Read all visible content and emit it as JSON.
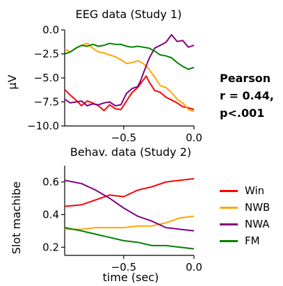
{
  "chart_data": [
    {
      "type": "line",
      "title": "EEG data (Study 1)",
      "xlabel": "",
      "ylabel": "μV",
      "xlim": [
        -0.92,
        0.0
      ],
      "ylim": [
        -10.0,
        0.0
      ],
      "xticks": [
        -0.5,
        0.0
      ],
      "xtick_labels": [
        "−0.5",
        "0.0"
      ],
      "yticks": [
        0.0,
        -2.5,
        -5.0,
        -7.5,
        -10.0
      ],
      "ytick_labels": [
        "0.0",
        "−2.5",
        "−5.0",
        "−7.5",
        "−10.0"
      ],
      "grid": false,
      "series": [
        {
          "color": "#ff0000",
          "x": [
            -0.92,
            -0.88,
            -0.84,
            -0.8,
            -0.76,
            -0.72,
            -0.68,
            -0.64,
            -0.6,
            -0.56,
            -0.52,
            -0.48,
            -0.44,
            -0.4,
            -0.36,
            -0.34,
            -0.32,
            -0.28,
            -0.24,
            -0.2,
            -0.16,
            -0.12,
            -0.08,
            -0.04,
            0.0
          ],
          "y": [
            -6.2,
            -6.8,
            -7.3,
            -7.9,
            -7.4,
            -7.6,
            -7.9,
            -8.4,
            -7.8,
            -8.2,
            -8.3,
            -7.4,
            -6.5,
            -6.0,
            -5.2,
            -4.8,
            -5.4,
            -6.3,
            -6.5,
            -7.0,
            -7.3,
            -7.6,
            -8.0,
            -8.1,
            -8.3
          ]
        },
        {
          "color": "#ffa500",
          "x": [
            -0.92,
            -0.88,
            -0.84,
            -0.8,
            -0.76,
            -0.72,
            -0.68,
            -0.64,
            -0.6,
            -0.56,
            -0.52,
            -0.48,
            -0.44,
            -0.4,
            -0.36,
            -0.32,
            -0.28,
            -0.24,
            -0.2,
            -0.16,
            -0.12,
            -0.08,
            -0.04,
            0.0
          ],
          "y": [
            -2.0,
            -2.3,
            -1.9,
            -1.6,
            -1.4,
            -1.9,
            -2.3,
            -2.4,
            -2.6,
            -2.8,
            -3.1,
            -3.5,
            -3.4,
            -3.2,
            -3.5,
            -4.1,
            -4.9,
            -5.8,
            -6.0,
            -6.5,
            -7.2,
            -7.6,
            -8.3,
            -8.5
          ]
        },
        {
          "color": "#800080",
          "x": [
            -0.92,
            -0.88,
            -0.84,
            -0.8,
            -0.76,
            -0.72,
            -0.68,
            -0.64,
            -0.6,
            -0.56,
            -0.52,
            -0.48,
            -0.44,
            -0.4,
            -0.38,
            -0.36,
            -0.32,
            -0.28,
            -0.24,
            -0.2,
            -0.16,
            -0.12,
            -0.08,
            -0.04,
            0.0
          ],
          "y": [
            -7.2,
            -7.6,
            -7.5,
            -7.4,
            -7.9,
            -7.7,
            -7.8,
            -7.6,
            -7.5,
            -7.9,
            -7.8,
            -6.6,
            -6.1,
            -5.9,
            -5.3,
            -4.5,
            -3.0,
            -1.9,
            -1.6,
            -1.3,
            -0.5,
            -1.2,
            -1.1,
            -1.8,
            -1.6
          ]
        },
        {
          "color": "#008000",
          "x": [
            -0.92,
            -0.88,
            -0.84,
            -0.8,
            -0.76,
            -0.72,
            -0.68,
            -0.64,
            -0.6,
            -0.56,
            -0.52,
            -0.48,
            -0.44,
            -0.4,
            -0.36,
            -0.32,
            -0.28,
            -0.24,
            -0.2,
            -0.16,
            -0.12,
            -0.08,
            -0.04,
            0.0
          ],
          "y": [
            -2.5,
            -2.3,
            -1.9,
            -1.6,
            -1.7,
            -1.5,
            -1.7,
            -1.6,
            -1.4,
            -1.5,
            -1.5,
            -1.7,
            -1.8,
            -1.7,
            -1.8,
            -1.9,
            -2.2,
            -2.6,
            -2.7,
            -2.9,
            -3.4,
            -3.8,
            -4.1,
            -3.9
          ]
        }
      ]
    },
    {
      "type": "line",
      "title": "Behav. data (Study 2)",
      "xlabel": "time (sec)",
      "ylabel": "Slot machibe",
      "xlim": [
        -0.92,
        0.0
      ],
      "ylim": [
        0.15,
        0.7
      ],
      "xticks": [
        -0.5,
        0.0
      ],
      "xtick_labels": [
        "−0.5",
        "0.0"
      ],
      "yticks": [
        0.2,
        0.4,
        0.6
      ],
      "ytick_labels": [
        "0.2",
        "0.4",
        "0.6"
      ],
      "grid": false,
      "series": [
        {
          "name": "Win",
          "color": "#ff0000",
          "x": [
            -0.92,
            -0.8,
            -0.7,
            -0.6,
            -0.5,
            -0.4,
            -0.3,
            -0.2,
            -0.1,
            0.0
          ],
          "y": [
            0.45,
            0.46,
            0.49,
            0.52,
            0.51,
            0.55,
            0.57,
            0.6,
            0.61,
            0.62
          ]
        },
        {
          "name": "NWB",
          "color": "#ffa500",
          "x": [
            -0.92,
            -0.8,
            -0.7,
            -0.6,
            -0.5,
            -0.4,
            -0.3,
            -0.2,
            -0.1,
            0.0
          ],
          "y": [
            0.31,
            0.31,
            0.32,
            0.32,
            0.32,
            0.33,
            0.33,
            0.35,
            0.38,
            0.39
          ]
        },
        {
          "name": "NWA",
          "color": "#800080",
          "x": [
            -0.92,
            -0.8,
            -0.7,
            -0.6,
            -0.5,
            -0.4,
            -0.3,
            -0.2,
            -0.1,
            0.0
          ],
          "y": [
            0.61,
            0.59,
            0.55,
            0.5,
            0.44,
            0.39,
            0.36,
            0.32,
            0.31,
            0.3
          ]
        },
        {
          "name": "FM",
          "color": "#008000",
          "x": [
            -0.92,
            -0.8,
            -0.7,
            -0.6,
            -0.5,
            -0.4,
            -0.3,
            -0.2,
            -0.1,
            0.0
          ],
          "y": [
            0.32,
            0.3,
            0.28,
            0.26,
            0.24,
            0.23,
            0.21,
            0.21,
            0.2,
            0.19
          ]
        }
      ]
    }
  ],
  "stats_text": [
    "Pearson",
    "r = 0.44,",
    "p<.001"
  ],
  "legend": [
    {
      "label": "Win",
      "color": "#ff0000"
    },
    {
      "label": "NWB",
      "color": "#ffa500"
    },
    {
      "label": "NWA",
      "color": "#800080"
    },
    {
      "label": "FM",
      "color": "#008000"
    }
  ]
}
